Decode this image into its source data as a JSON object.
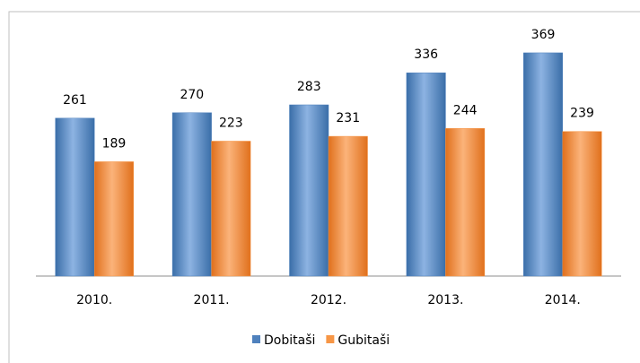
{
  "chart_data": {
    "type": "bar",
    "categories": [
      "2010.",
      "2011.",
      "2012.",
      "2013.",
      "2014."
    ],
    "series": [
      {
        "name": "Dobitaši",
        "color": "#4f81bd",
        "values": [
          261,
          270,
          283,
          336,
          369
        ]
      },
      {
        "name": "Gubitaši",
        "color": "#f79646",
        "values": [
          189,
          223,
          231,
          244,
          239
        ]
      }
    ]
  }
}
